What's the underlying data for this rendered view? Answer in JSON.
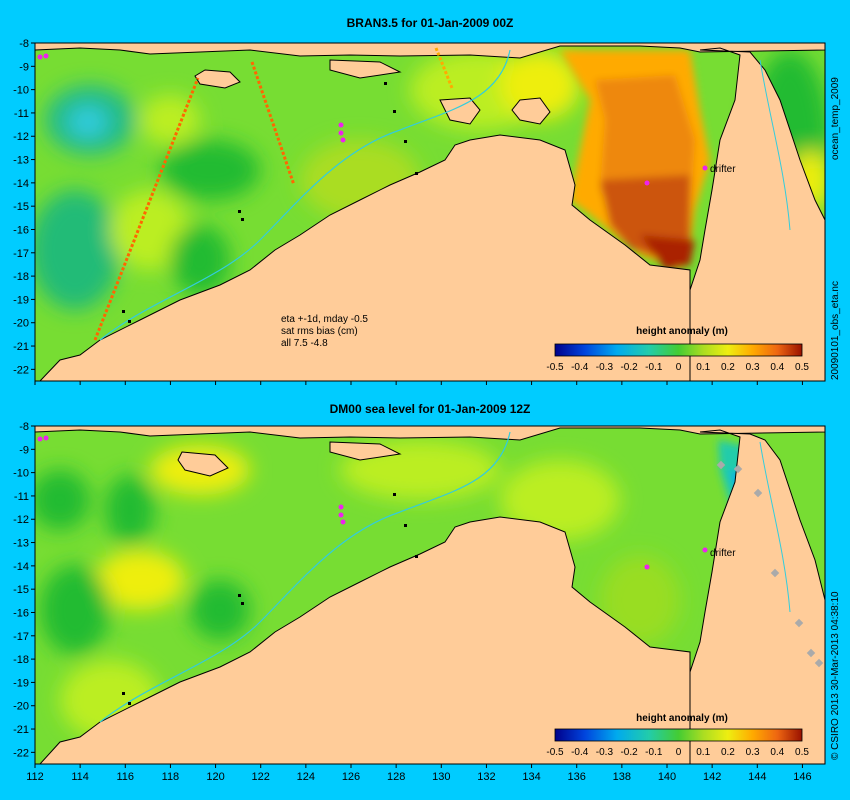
{
  "chart_data": [
    {
      "type": "heatmap",
      "title": "BRAN3.5 for 01-Jan-2009 00Z",
      "xlim": [
        112,
        147
      ],
      "ylim": [
        -22.5,
        -8
      ],
      "x_ticks": [
        112,
        114,
        116,
        118,
        120,
        122,
        124,
        126,
        128,
        130,
        132,
        134,
        136,
        138,
        140,
        142,
        144,
        146
      ],
      "y_ticks": [
        -8,
        -9,
        -10,
        -11,
        -12,
        -13,
        -14,
        -15,
        -16,
        -17,
        -18,
        -19,
        -20,
        -21,
        -22
      ],
      "annotations": [
        "eta +-1d, mday -0.5",
        "sat rms bias (cm)",
        "all 7.5 -4.8"
      ],
      "marker_label": "drifter",
      "side_label": "20090101_obs_eta.nc",
      "side_label_top": "ocean_temp_2009",
      "colorbar": {
        "label": "height anomaly (m)",
        "ticks": [
          "-0.5",
          "-0.4",
          "-0.3",
          "-0.2",
          "-0.1",
          "0",
          "0.1",
          "0.2",
          "0.3",
          "0.4",
          "0.5"
        ],
        "range": [
          -0.5,
          0.5
        ]
      }
    },
    {
      "type": "heatmap",
      "title": "DM00 sea level  for 01-Jan-2009 12Z",
      "xlim": [
        112,
        147
      ],
      "ylim": [
        -22.5,
        -8
      ],
      "x_ticks": [
        112,
        114,
        116,
        118,
        120,
        122,
        124,
        126,
        128,
        130,
        132,
        134,
        136,
        138,
        140,
        142,
        144,
        146
      ],
      "y_ticks": [
        -8,
        -9,
        -10,
        -11,
        -12,
        -13,
        -14,
        -15,
        -16,
        -17,
        -18,
        -19,
        -20,
        -21,
        -22
      ],
      "marker_label": "drifter",
      "side_label": "© CSIRO 2013  30-Mar-2013 04:38:10",
      "colorbar": {
        "label": "height anomaly (m)",
        "ticks": [
          "-0.5",
          "-0.4",
          "-0.3",
          "-0.2",
          "-0.1",
          "0",
          "0.1",
          "0.2",
          "0.3",
          "0.4",
          "0.5"
        ],
        "range": [
          -0.5,
          0.5
        ]
      }
    }
  ],
  "colors": {
    "page_bg": "#00ccff",
    "land": "#ffcc99",
    "ocean_base": "#77dd33",
    "green_dark": "#22bb33",
    "teal": "#22bb88",
    "yellow_green": "#bbee22",
    "yellow": "#eeee11",
    "orange": "#ff9900",
    "dark_orange": "#dd6611",
    "red_brown": "#bb2200",
    "cyan_line": "#33ccdd",
    "magenta": "#ee22ee",
    "coast": "#000000"
  }
}
